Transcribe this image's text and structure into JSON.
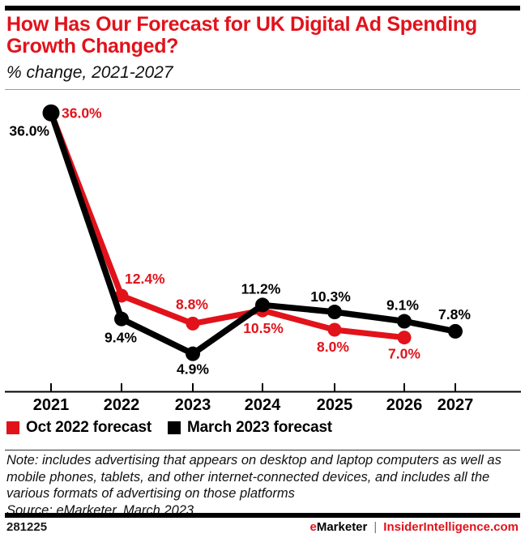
{
  "header": {
    "title": "How Has Our Forecast for UK Digital Ad Spending Growth Changed?",
    "subtitle": "% change, 2021-2027"
  },
  "chart_data": {
    "type": "line",
    "title": "How Has Our Forecast for UK Digital Ad Spending Growth Changed?",
    "subtitle": "% change, 2021-2027",
    "categories": [
      "2021",
      "2022",
      "2023",
      "2024",
      "2025",
      "2026",
      "2027"
    ],
    "series": [
      {
        "name": "Oct 2022 forecast",
        "color": "#e2121b",
        "values": [
          36.0,
          12.4,
          8.8,
          10.5,
          8.0,
          7.0,
          null
        ],
        "labels": [
          "36.0%",
          "12.4%",
          "8.8%",
          "10.5%",
          "8.0%",
          "7.0%"
        ]
      },
      {
        "name": "March 2023 forecast",
        "color": "#000000",
        "values": [
          36.0,
          9.4,
          4.9,
          11.2,
          10.3,
          9.1,
          7.8
        ],
        "labels": [
          "36.0%",
          "9.4%",
          "4.9%",
          "11.2%",
          "10.3%",
          "9.1%",
          "7.8%"
        ]
      }
    ],
    "xlabel": "",
    "ylabel": "% change",
    "ylim": [
      0,
      38
    ],
    "grid": false,
    "y_axis_shown": false,
    "legend_position": "bottom"
  },
  "note": {
    "text": "Note: includes advertising that appears on desktop and laptop computers as well as mobile phones, tablets, and other internet-connected devices, and includes all the various formats of advertising on those platforms",
    "source": "Source: eMarketer, March 2023"
  },
  "footer": {
    "chart_id": "281225",
    "brand_prefix": "e",
    "brand_rest": "Marketer",
    "separator": "|",
    "site": "InsiderIntelligence.com"
  },
  "colors": {
    "accent_red": "#e2121b",
    "black": "#000000"
  }
}
